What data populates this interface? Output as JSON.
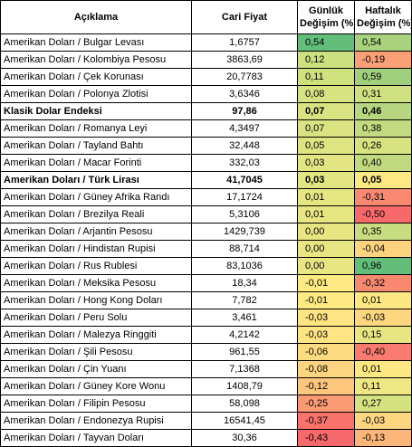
{
  "headers": {
    "description": "Açıklama",
    "price": "Cari Fiyat",
    "daily_line1": "Günlük",
    "daily_line2": "Değişim (%)",
    "weekly_line1": "Haftalık",
    "weekly_line2": "Değişim (%)"
  },
  "rows": [
    {
      "name": "Amerikan Doları / Bulgar Levası",
      "price": "1,6757",
      "daily": "0,54",
      "weekly": "0,54",
      "bold": false,
      "daily_color": "#63be7b",
      "weekly_color": "#a9d27f"
    },
    {
      "name": "Amerikan Doları / Kolombiya Pesosu",
      "price": "3863,69",
      "daily": "0,12",
      "weekly": "-0,19",
      "bold": false,
      "daily_color": "#cde07f",
      "weekly_color": "#fba076"
    },
    {
      "name": "Amerikan Doları / Çek Korunası",
      "price": "20,7783",
      "daily": "0,11",
      "weekly": "0,59",
      "bold": false,
      "daily_color": "#d0e180",
      "weekly_color": "#a0cf7e"
    },
    {
      "name": "Amerikan Doları / Polonya Zlotisi",
      "price": "3,6346",
      "daily": "0,08",
      "weekly": "0,31",
      "bold": false,
      "daily_color": "#d7e380",
      "weekly_color": "#cfe080"
    },
    {
      "name": "Klasik Dolar Endeksi",
      "price": "97,86",
      "daily": "0,07",
      "weekly": "0,46",
      "bold": true,
      "daily_color": "#d9e381",
      "weekly_color": "#b6d67f"
    },
    {
      "name": "Amerikan Doları / Romanya Leyi",
      "price": "4,3497",
      "daily": "0,07",
      "weekly": "0,38",
      "bold": false,
      "daily_color": "#d9e381",
      "weekly_color": "#c3da80"
    },
    {
      "name": "Amerikan Doları / Tayland Bahtı",
      "price": "32,448",
      "daily": "0,05",
      "weekly": "0,26",
      "bold": false,
      "daily_color": "#dde481",
      "weekly_color": "#d7e380"
    },
    {
      "name": "Amerikan Doları / Macar Forinti",
      "price": "332,03",
      "daily": "0,03",
      "weekly": "0,40",
      "bold": false,
      "daily_color": "#e2e582",
      "weekly_color": "#c0d97f"
    },
    {
      "name": "Amerikan Doları / Türk Lirası",
      "price": "41,7045",
      "daily": "0,03",
      "weekly": "0,05",
      "bold": true,
      "daily_color": "#e2e582",
      "weekly_color": "#fce983"
    },
    {
      "name": "Amerikan Doları / Güney Afrika Randı",
      "price": "17,1724",
      "daily": "0,01",
      "weekly": "-0,31",
      "bold": false,
      "daily_color": "#e6e683",
      "weekly_color": "#f98a71"
    },
    {
      "name": "Amerikan Doları / Brezilya Reali",
      "price": "5,3106",
      "daily": "0,01",
      "weekly": "-0,50",
      "bold": false,
      "daily_color": "#e6e683",
      "weekly_color": "#f8696b"
    },
    {
      "name": "Amerikan Doları / Arjantin Pesosu",
      "price": "1429,739",
      "daily": "0,00",
      "weekly": "0,35",
      "bold": false,
      "daily_color": "#e8e683",
      "weekly_color": "#c8dc80"
    },
    {
      "name": "Amerikan Doları / Hindistan Rupisi",
      "price": "88,714",
      "daily": "0,00",
      "weekly": "-0,04",
      "bold": false,
      "daily_color": "#e8e683",
      "weekly_color": "#fdd380"
    },
    {
      "name": "Amerikan Doları / Rus Rublesi",
      "price": "83,1036",
      "daily": "0,00",
      "weekly": "0,96",
      "bold": false,
      "daily_color": "#e8e683",
      "weekly_color": "#63be7b"
    },
    {
      "name": "Amerikan Doları / Meksika Pesosu",
      "price": "18,34",
      "daily": "-0,01",
      "weekly": "-0,32",
      "bold": false,
      "daily_color": "#feea83",
      "weekly_color": "#f98870"
    },
    {
      "name": "Amerikan Doları / Hong Kong Doları",
      "price": "7,782",
      "daily": "-0,01",
      "weekly": "0,01",
      "bold": false,
      "daily_color": "#feea83",
      "weekly_color": "#fce883"
    },
    {
      "name": "Amerikan Doları / Peru Solu",
      "price": "3,461",
      "daily": "-0,03",
      "weekly": "-0,03",
      "bold": false,
      "daily_color": "#fee482",
      "weekly_color": "#fdd680"
    },
    {
      "name": "Amerikan Doları / Malezya Ringgiti",
      "price": "4,2142",
      "daily": "-0,03",
      "weekly": "0,15",
      "bold": false,
      "daily_color": "#fee482",
      "weekly_color": "#e8e683"
    },
    {
      "name": "Amerikan Doları / Şili Pesosu",
      "price": "961,55",
      "daily": "-0,06",
      "weekly": "-0,40",
      "bold": false,
      "daily_color": "#fddb81",
      "weekly_color": "#f97a6e"
    },
    {
      "name": "Amerikan Doları / Çin Yuanı",
      "price": "7,1368",
      "daily": "-0,08",
      "weekly": "0,01",
      "bold": false,
      "daily_color": "#fdd480",
      "weekly_color": "#fce883"
    },
    {
      "name": "Amerikan Doları / Güney Kore Wonu",
      "price": "1408,79",
      "daily": "-0,12",
      "weekly": "0,11",
      "bold": false,
      "daily_color": "#fcc67c",
      "weekly_color": "#eee783"
    },
    {
      "name": "Amerikan Doları / Filipin Pesosu",
      "price": "58,098",
      "daily": "-0,25",
      "weekly": "0,27",
      "bold": false,
      "daily_color": "#fa9b75",
      "weekly_color": "#d5e280"
    },
    {
      "name": "Amerikan Doları / Endonezya Rupisi",
      "price": "16541,45",
      "daily": "-0,37",
      "weekly": "-0,03",
      "bold": false,
      "daily_color": "#f9726c",
      "weekly_color": "#fdd680"
    },
    {
      "name": "Amerikan Doları /  Tayvan Doları",
      "price": "30,36",
      "daily": "-0,43",
      "weekly": "-0,13",
      "bold": false,
      "daily_color": "#f8696b",
      "weekly_color": "#fcb67a"
    }
  ]
}
